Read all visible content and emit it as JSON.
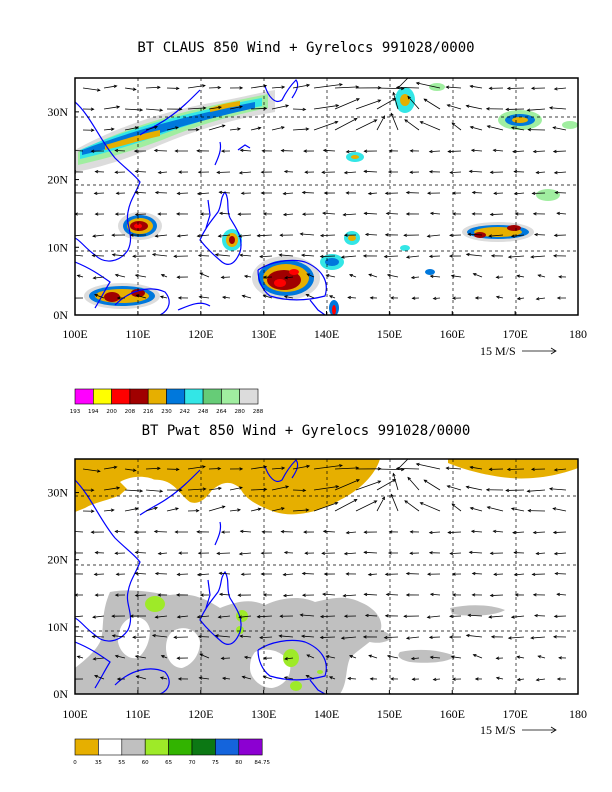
{
  "panels": [
    {
      "id": "top",
      "title": "BT CLAUS 850 Wind + Gyrelocs 991028/0000",
      "x_ticks": [
        "100E",
        "110E",
        "120E",
        "130E",
        "140E",
        "150E",
        "160E",
        "170E",
        "180"
      ],
      "y_ticks": [
        "0N",
        "10N",
        "20N",
        "30N"
      ],
      "scale_label": "15 M/S",
      "colorbar": {
        "colors": [
          "#ff00ff",
          "#ffff00",
          "#ff0000",
          "#a00000",
          "#e6af00",
          "#0078dc",
          "#33e6e6",
          "#66cc77",
          "#a0eea0",
          "#dcdcdc"
        ],
        "labels": [
          "193",
          "194",
          "200",
          "208",
          "216",
          "230",
          "242",
          "248",
          "264",
          "280",
          "288"
        ]
      }
    },
    {
      "id": "bottom",
      "title": "BT Pwat 850 Wind + Gyrelocs 991028/0000",
      "x_ticks": [
        "100E",
        "110E",
        "120E",
        "130E",
        "140E",
        "150E",
        "160E",
        "170E",
        "180"
      ],
      "y_ticks": [
        "0N",
        "10N",
        "20N",
        "30N"
      ],
      "scale_label": "15 M/S",
      "colorbar": {
        "colors": [
          "#e6af00",
          "#ffffff",
          "#c0c0c0",
          "#9eea28",
          "#32b400",
          "#0c7814",
          "#1464dc",
          "#8c00d2"
        ],
        "labels": [
          "0",
          "35",
          "55",
          "60",
          "65",
          "70",
          "75",
          "80",
          "84.75"
        ]
      }
    }
  ],
  "chart_data": [
    {
      "type": "heatmap",
      "title": "BT CLAUS 850 Wind + Gyrelocs 991028/0000",
      "variable": "brightness temperature",
      "x_range_deg_east": [
        100,
        180
      ],
      "y_range_deg_north": [
        0,
        35
      ],
      "grid": true,
      "overlay": "850 hPa wind vectors",
      "vector_scale": "15 M/S",
      "colorbar_levels": [
        193,
        194,
        200,
        208,
        216,
        230,
        242,
        248,
        264,
        280,
        288
      ]
    },
    {
      "type": "heatmap",
      "title": "BT Pwat 850 Wind + Gyrelocs 991028/0000",
      "variable": "precipitable water",
      "x_range_deg_east": [
        100,
        180
      ],
      "y_range_deg_north": [
        0,
        35
      ],
      "grid": true,
      "overlay": "850 hPa wind vectors",
      "vector_scale": "15 M/S",
      "colorbar_levels": [
        0,
        35,
        55,
        60,
        65,
        70,
        75,
        80,
        84.75
      ]
    }
  ]
}
